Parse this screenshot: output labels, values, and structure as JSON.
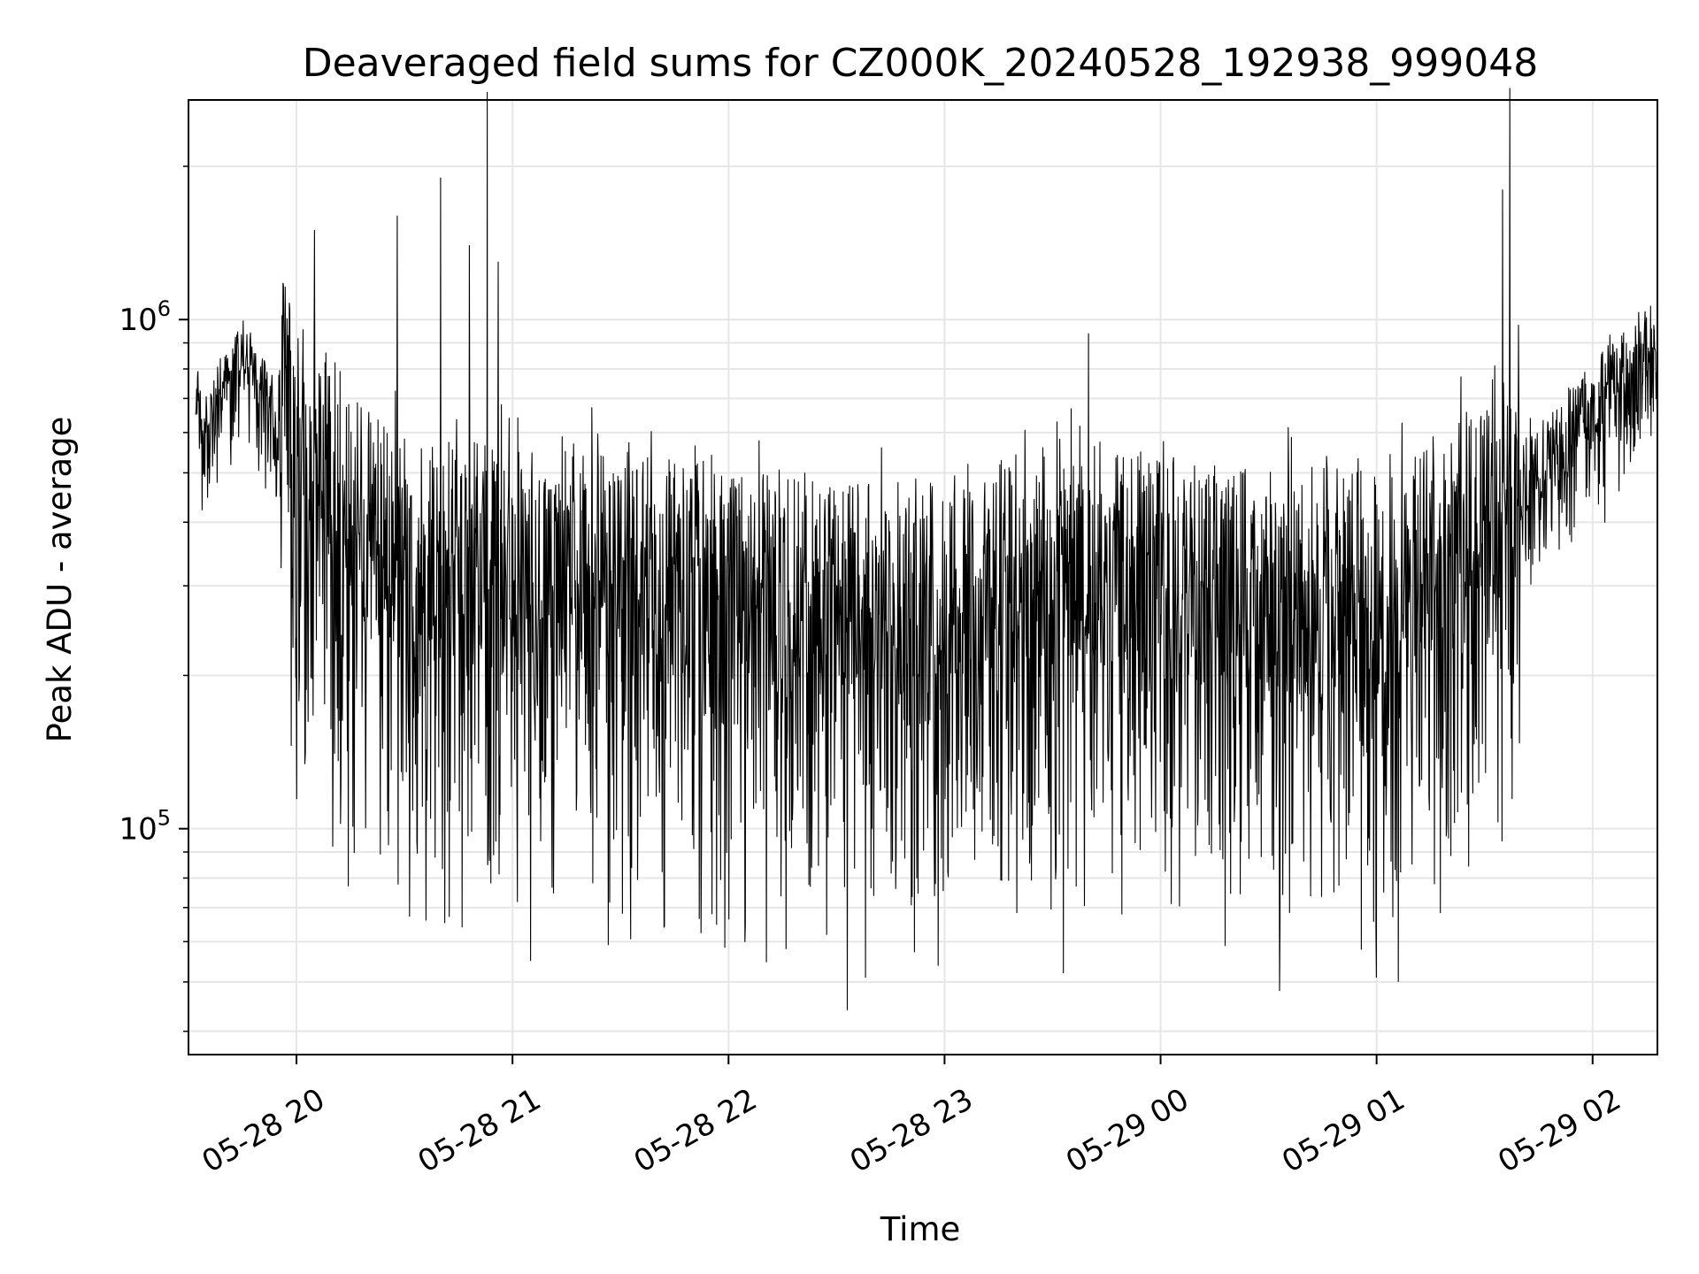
{
  "chart_data": {
    "type": "line",
    "title": "Deaveraged field sums for CZ000K_20240528_192938_999048",
    "xlabel": "Time",
    "ylabel": "Peak ADU - average",
    "xscale": "time",
    "yscale": "log",
    "xlim": [
      "2024-05-28T19:30",
      "2024-05-29T02:18"
    ],
    "ylim": [
      36000,
      2700000
    ],
    "grid": true,
    "legend": "none",
    "line_color": "#000000",
    "x_ticks": [
      {
        "value": "2024-05-28T20:00",
        "label": "05-28 20"
      },
      {
        "value": "2024-05-28T21:00",
        "label": "05-28 21"
      },
      {
        "value": "2024-05-28T22:00",
        "label": "05-28 22"
      },
      {
        "value": "2024-05-28T23:00",
        "label": "05-28 23"
      },
      {
        "value": "2024-05-29T00:00",
        "label": "05-29 00"
      },
      {
        "value": "2024-05-29T01:00",
        "label": "05-29 01"
      },
      {
        "value": "2024-05-29T02:00",
        "label": "05-29 02"
      }
    ],
    "y_ticks": [
      {
        "value": 100000,
        "base": "10",
        "exp": "5"
      },
      {
        "value": 1000000,
        "base": "10",
        "exp": "6"
      }
    ],
    "baseline": [
      {
        "t": "2024-05-28T19:30",
        "y": 800000
      },
      {
        "t": "2024-05-28T19:35",
        "y": 600000
      },
      {
        "t": "2024-05-28T19:40",
        "y": 750000
      },
      {
        "t": "2024-05-28T19:45",
        "y": 850000
      },
      {
        "t": "2024-05-28T19:50",
        "y": 720000
      },
      {
        "t": "2024-05-28T20:00",
        "y": 550000
      },
      {
        "t": "2024-05-28T20:15",
        "y": 380000
      },
      {
        "t": "2024-05-28T20:30",
        "y": 300000
      },
      {
        "t": "2024-05-28T21:00",
        "y": 290000
      },
      {
        "t": "2024-05-28T22:00",
        "y": 270000
      },
      {
        "t": "2024-05-28T22:30",
        "y": 250000
      },
      {
        "t": "2024-05-28T23:00",
        "y": 260000
      },
      {
        "t": "2024-05-28T23:40",
        "y": 300000
      },
      {
        "t": "2024-05-29T00:00",
        "y": 280000
      },
      {
        "t": "2024-05-29T00:40",
        "y": 260000
      },
      {
        "t": "2024-05-29T01:10",
        "y": 280000
      },
      {
        "t": "2024-05-29T01:40",
        "y": 450000
      },
      {
        "t": "2024-05-29T02:00",
        "y": 650000
      },
      {
        "t": "2024-05-29T02:18",
        "y": 900000
      }
    ],
    "peaks": [
      {
        "t": "2024-05-28T20:05",
        "y": 1500000
      },
      {
        "t": "2024-05-28T20:28",
        "y": 1600000
      },
      {
        "t": "2024-05-28T20:40",
        "y": 1900000
      },
      {
        "t": "2024-05-28T20:48",
        "y": 1400000
      },
      {
        "t": "2024-05-28T20:53",
        "y": 2800000
      },
      {
        "t": "2024-05-28T20:56",
        "y": 1300000
      },
      {
        "t": "2024-05-28T23:40",
        "y": 940000
      },
      {
        "t": "2024-05-29T01:35",
        "y": 1800000
      },
      {
        "t": "2024-05-29T01:37",
        "y": 2850000
      }
    ],
    "dips": [
      {
        "t": "2024-05-28T20:36",
        "y": 66000
      },
      {
        "t": "2024-05-28T20:46",
        "y": 64000
      },
      {
        "t": "2024-05-28T21:05",
        "y": 55000
      },
      {
        "t": "2024-05-28T22:16",
        "y": 58000
      },
      {
        "t": "2024-05-28T22:33",
        "y": 44000
      },
      {
        "t": "2024-05-28T22:38",
        "y": 51000
      },
      {
        "t": "2024-05-28T23:33",
        "y": 52000
      },
      {
        "t": "2024-05-29T00:33",
        "y": 48000
      },
      {
        "t": "2024-05-29T01:00",
        "y": 51000
      },
      {
        "t": "2024-05-29T01:06",
        "y": 50000
      }
    ]
  }
}
